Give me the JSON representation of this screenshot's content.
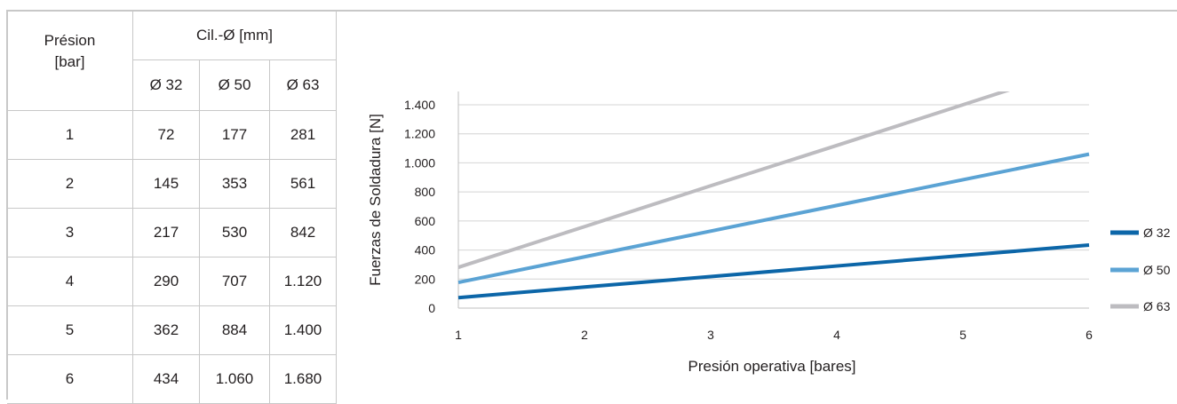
{
  "table": {
    "header_pressure": [
      "Présion",
      "[bar]"
    ],
    "header_cyl": "Cil.-Ø [mm]",
    "sub_headers": [
      "Ø 32",
      "Ø 50",
      "Ø 63"
    ],
    "rows": [
      [
        "1",
        "72",
        "177",
        "281"
      ],
      [
        "2",
        "145",
        "353",
        "561"
      ],
      [
        "3",
        "217",
        "530",
        "842"
      ],
      [
        "4",
        "290",
        "707",
        "1.120"
      ],
      [
        "5",
        "362",
        "884",
        "1.400"
      ],
      [
        "6",
        "434",
        "1.060",
        "1.680"
      ]
    ]
  },
  "chart_data": {
    "type": "line",
    "xlabel": "Presión operativa [bares]",
    "ylabel": "Fuerzas de Soldadura [N]",
    "x": [
      1,
      2,
      3,
      4,
      5,
      6
    ],
    "x_tick_labels": [
      "1",
      "2",
      "3",
      "4",
      "5",
      "6"
    ],
    "ylim": [
      0,
      1400
    ],
    "y_ticks": [
      0,
      200,
      400,
      600,
      800,
      1000,
      1200,
      1400
    ],
    "y_tick_labels": [
      "0",
      "200",
      "400",
      "600",
      "800",
      "1.000",
      "1.200",
      "1.400"
    ],
    "grid": true,
    "legend": "right",
    "series": [
      {
        "name": "Ø 32",
        "color": "#0c66a8",
        "values": [
          72,
          145,
          217,
          290,
          362,
          434
        ]
      },
      {
        "name": "Ø 50",
        "color": "#5ba3d4",
        "values": [
          177,
          353,
          530,
          707,
          884,
          1060
        ]
      },
      {
        "name": "Ø 63",
        "color": "#bdbcc0",
        "values": [
          281,
          561,
          842,
          1120,
          1400,
          1680
        ]
      }
    ]
  }
}
